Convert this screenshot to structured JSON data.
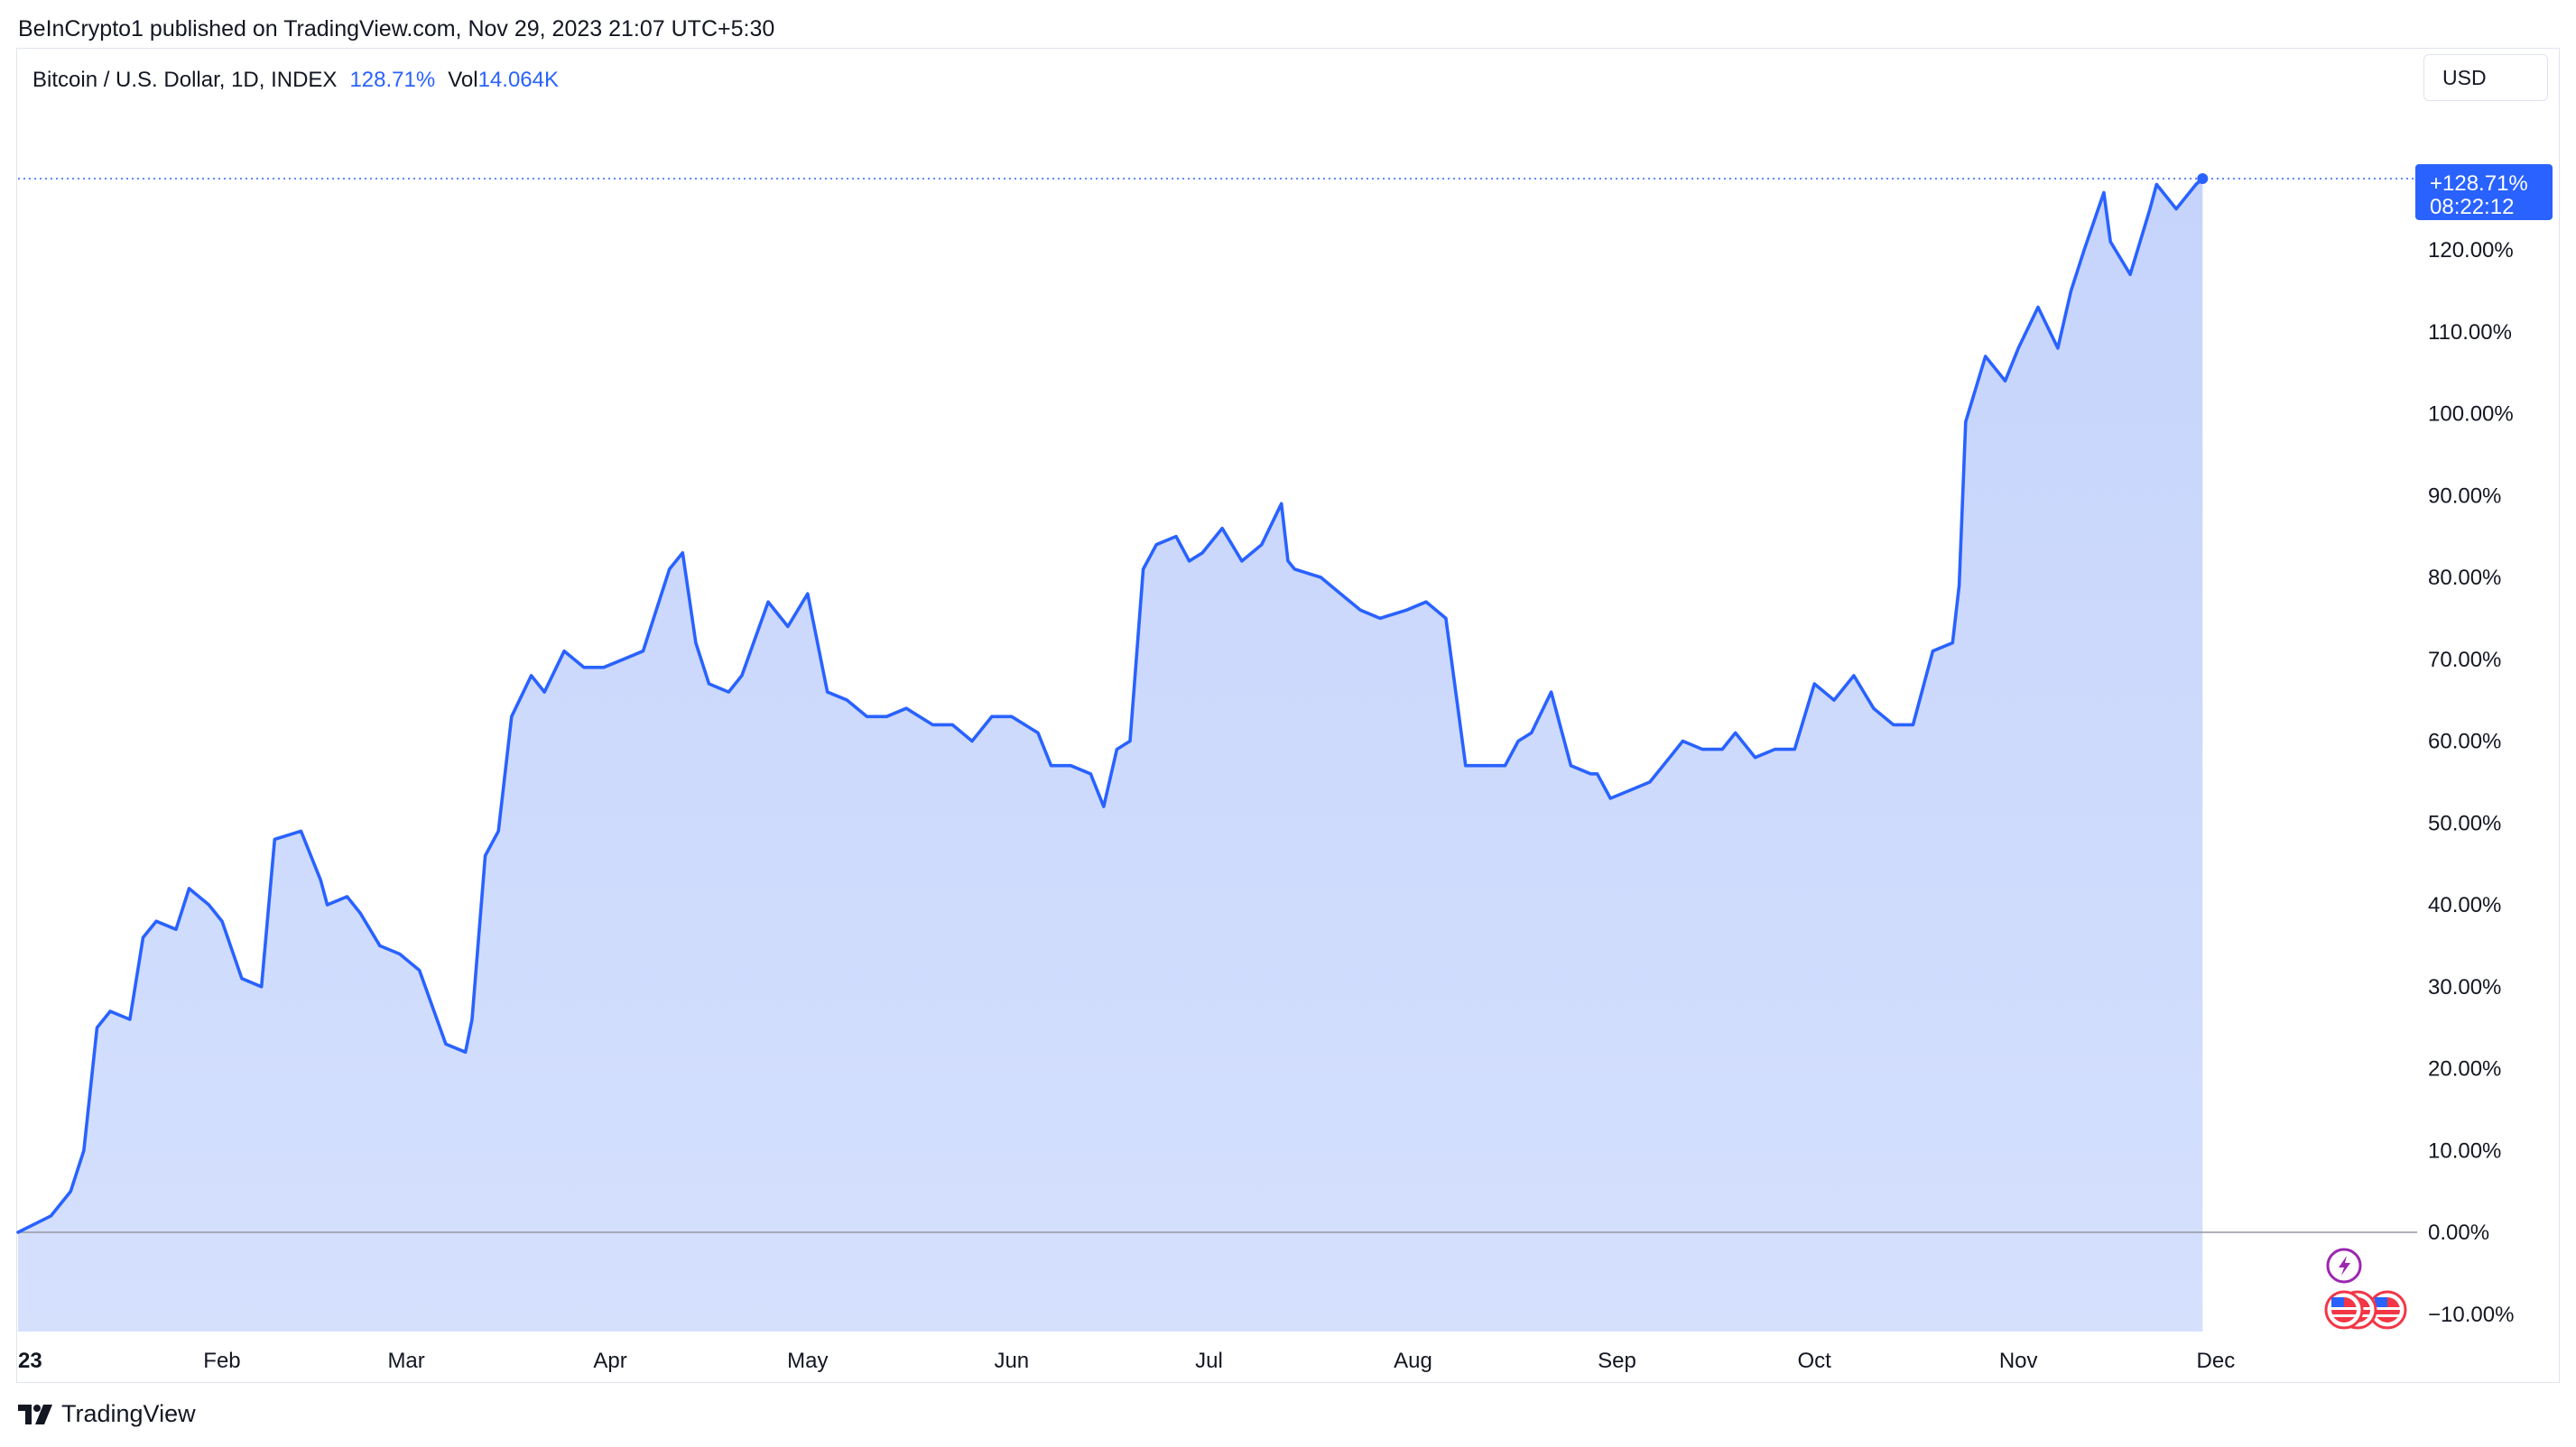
{
  "publish_line": "BeInCrypto1 published on TradingView.com, Nov 29, 2023 21:07 UTC+5:30",
  "legend": {
    "symbol": "Bitcoin / U.S. Dollar, 1D, INDEX",
    "change": "128.71%",
    "vol_label": "Vol",
    "vol_value": "14.064K"
  },
  "currency_button": "USD",
  "last_price_badge": {
    "value": "+128.71%",
    "countdown": "08:22:12"
  },
  "brand": "TradingView",
  "colors": {
    "line": "#2962ff",
    "area": "#cbd8fd",
    "badge": "#2962ff",
    "zero_line": "#9598a1",
    "event_purple": "#9c27b0",
    "event_red": "#f23645"
  },
  "icons": [
    "lightning-event-icon",
    "us-flag-event-icon",
    "tradingview-logo-icon"
  ],
  "chart_data": {
    "type": "area",
    "title": "Bitcoin / U.S. Dollar, 1D, INDEX",
    "xlabel": "",
    "ylabel": "",
    "ylim": [
      -12,
      135
    ],
    "y_ticks": [
      -10,
      0,
      10,
      20,
      30,
      40,
      50,
      60,
      70,
      80,
      90,
      100,
      110,
      120
    ],
    "y_tick_labels": [
      "−10.00%",
      "0.00%",
      "10.00%",
      "20.00%",
      "30.00%",
      "40.00%",
      "50.00%",
      "60.00%",
      "70.00%",
      "80.00%",
      "90.00%",
      "100.00%",
      "110.00%",
      "120.00%"
    ],
    "x_ticks": [
      "2023-01-01",
      "2023-02-01",
      "2023-03-01",
      "2023-04-01",
      "2023-05-01",
      "2023-06-01",
      "2023-07-01",
      "2023-08-01",
      "2023-09-01",
      "2023-10-01",
      "2023-11-01",
      "2023-12-01"
    ],
    "x_tick_labels": [
      "23",
      "Feb",
      "Mar",
      "Apr",
      "May",
      "Jun",
      "Jul",
      "Aug",
      "Sep",
      "Oct",
      "Nov",
      "Dec"
    ],
    "last_value": 128.71,
    "series": [
      {
        "x": [
          "2023-01-01",
          "2023-01-06",
          "2023-01-09",
          "2023-01-11",
          "2023-01-13",
          "2023-01-15",
          "2023-01-18",
          "2023-01-20",
          "2023-01-22",
          "2023-01-25",
          "2023-01-27",
          "2023-01-30",
          "2023-02-01",
          "2023-02-04",
          "2023-02-07",
          "2023-02-09",
          "2023-02-13",
          "2023-02-16",
          "2023-02-17",
          "2023-02-20",
          "2023-02-22",
          "2023-02-25",
          "2023-02-28",
          "2023-03-03",
          "2023-03-07",
          "2023-03-10",
          "2023-03-11",
          "2023-03-13",
          "2023-03-15",
          "2023-03-17",
          "2023-03-20",
          "2023-03-22",
          "2023-03-25",
          "2023-03-28",
          "2023-03-31",
          "2023-04-03",
          "2023-04-06",
          "2023-04-10",
          "2023-04-12",
          "2023-04-14",
          "2023-04-16",
          "2023-04-19",
          "2023-04-21",
          "2023-04-25",
          "2023-04-28",
          "2023-05-01",
          "2023-05-04",
          "2023-05-07",
          "2023-05-10",
          "2023-05-13",
          "2023-05-16",
          "2023-05-20",
          "2023-05-23",
          "2023-05-26",
          "2023-05-29",
          "2023-06-01",
          "2023-06-05",
          "2023-06-07",
          "2023-06-10",
          "2023-06-13",
          "2023-06-15",
          "2023-06-17",
          "2023-06-19",
          "2023-06-21",
          "2023-06-23",
          "2023-06-26",
          "2023-06-28",
          "2023-06-30",
          "2023-07-03",
          "2023-07-06",
          "2023-07-09",
          "2023-07-12",
          "2023-07-13",
          "2023-07-14",
          "2023-07-18",
          "2023-07-21",
          "2023-07-24",
          "2023-07-27",
          "2023-07-31",
          "2023-08-03",
          "2023-08-06",
          "2023-08-09",
          "2023-08-12",
          "2023-08-15",
          "2023-08-17",
          "2023-08-19",
          "2023-08-22",
          "2023-08-25",
          "2023-08-28",
          "2023-08-29",
          "2023-08-31",
          "2023-09-03",
          "2023-09-06",
          "2023-09-09",
          "2023-09-11",
          "2023-09-14",
          "2023-09-17",
          "2023-09-19",
          "2023-09-22",
          "2023-09-25",
          "2023-09-28",
          "2023-10-01",
          "2023-10-04",
          "2023-10-07",
          "2023-10-10",
          "2023-10-13",
          "2023-10-16",
          "2023-10-19",
          "2023-10-22",
          "2023-10-23",
          "2023-10-24",
          "2023-10-27",
          "2023-10-30",
          "2023-11-01",
          "2023-11-04",
          "2023-11-07",
          "2023-11-09",
          "2023-11-11",
          "2023-11-14",
          "2023-11-15",
          "2023-11-18",
          "2023-11-21",
          "2023-11-22",
          "2023-11-25",
          "2023-11-28",
          "2023-11-29"
        ],
        "y": [
          0,
          2,
          5,
          10,
          25,
          27,
          26,
          36,
          38,
          37,
          42,
          40,
          38,
          31,
          30,
          48,
          49,
          43,
          40,
          41,
          39,
          35,
          34,
          32,
          23,
          22,
          26,
          46,
          49,
          63,
          68,
          66,
          71,
          69,
          69,
          70,
          71,
          81,
          83,
          72,
          67,
          66,
          68,
          77,
          74,
          78,
          66,
          65,
          63,
          63,
          64,
          62,
          62,
          60,
          63,
          63,
          61,
          57,
          57,
          56,
          52,
          59,
          60,
          81,
          84,
          85,
          82,
          83,
          86,
          82,
          84,
          89,
          82,
          81,
          80,
          78,
          76,
          75,
          76,
          77,
          75,
          57,
          57,
          57,
          60,
          61,
          66,
          57,
          56,
          56,
          53,
          54,
          55,
          58,
          60,
          59,
          59,
          61,
          58,
          59,
          59,
          67,
          65,
          68,
          64,
          62,
          62,
          71,
          72,
          79,
          99,
          107,
          104,
          108,
          113,
          108,
          115,
          120,
          127,
          121,
          117,
          125,
          128,
          125,
          128,
          128.71
        ]
      }
    ]
  }
}
